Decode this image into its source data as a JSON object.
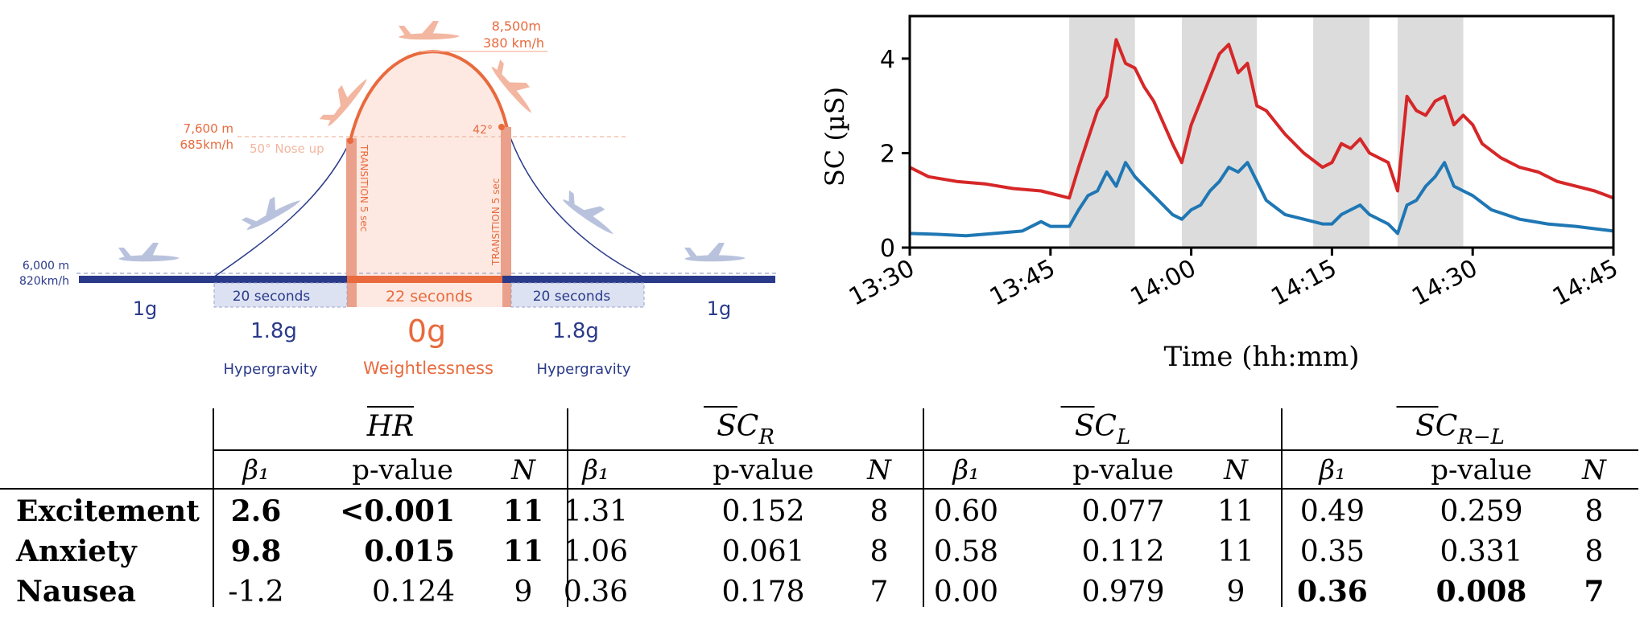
{
  "parabola": {
    "start_altitude": "6,000 m",
    "start_speed": "820km/h",
    "entry_altitude": "7,600 m",
    "entry_speed": "685km/h",
    "nose_up": "50° Nose up",
    "exit_angle": "42°",
    "top_altitude": "8,500m",
    "top_speed": "380 km/h",
    "transition_label": "TRANSITION 5 sec",
    "phases": [
      {
        "duration": "",
        "g": "1g",
        "name": ""
      },
      {
        "duration": "20 seconds",
        "g": "1.8g",
        "name": "Hypergravity"
      },
      {
        "duration": "22 seconds",
        "g": "0g",
        "name": "Weightlessness"
      },
      {
        "duration": "20 seconds",
        "g": "1.8g",
        "name": "Hypergravity"
      },
      {
        "duration": "",
        "g": "1g",
        "name": ""
      }
    ],
    "colors": {
      "orange": "#e86a3d",
      "navy": "#2a3a8a",
      "plane": "#b9c2dd",
      "plane_orange": "#f3b6a0"
    }
  },
  "chart_data": {
    "type": "line",
    "ylabel": "SC (µS)",
    "xlabel": "Time (hh:mm)",
    "xlim": [
      "13:30",
      "14:45"
    ],
    "ylim": [
      0,
      4.9
    ],
    "xticks": [
      "13:30",
      "13:45",
      "14:00",
      "14:15",
      "14:30",
      "14:45"
    ],
    "yticks": [
      0,
      2,
      4
    ],
    "shaded_intervals": [
      [
        "13:47",
        "13:54"
      ],
      [
        "13:59",
        "14:07"
      ],
      [
        "14:13",
        "14:19"
      ],
      [
        "14:22",
        "14:29"
      ]
    ],
    "series": [
      {
        "color": "#d62728",
        "points": [
          [
            "13:30",
            1.7
          ],
          [
            "13:32",
            1.5
          ],
          [
            "13:35",
            1.4
          ],
          [
            "13:38",
            1.35
          ],
          [
            "13:41",
            1.25
          ],
          [
            "13:44",
            1.2
          ],
          [
            "13:47",
            1.05
          ],
          [
            "13:48",
            1.7
          ],
          [
            "13:49",
            2.3
          ],
          [
            "13:50",
            2.9
          ],
          [
            "13:51",
            3.2
          ],
          [
            "13:52",
            4.4
          ],
          [
            "13:53",
            3.9
          ],
          [
            "13:54",
            3.8
          ],
          [
            "13:55",
            3.4
          ],
          [
            "13:56",
            3.1
          ],
          [
            "13:58",
            2.2
          ],
          [
            "13:59",
            1.8
          ],
          [
            "14:00",
            2.6
          ],
          [
            "14:01",
            3.1
          ],
          [
            "14:02",
            3.6
          ],
          [
            "14:03",
            4.1
          ],
          [
            "14:04",
            4.3
          ],
          [
            "14:05",
            3.7
          ],
          [
            "14:06",
            3.9
          ],
          [
            "14:07",
            3.0
          ],
          [
            "14:08",
            2.9
          ],
          [
            "14:10",
            2.4
          ],
          [
            "14:12",
            2.0
          ],
          [
            "14:14",
            1.7
          ],
          [
            "14:15",
            1.8
          ],
          [
            "14:16",
            2.2
          ],
          [
            "14:17",
            2.1
          ],
          [
            "14:18",
            2.3
          ],
          [
            "14:19",
            2.0
          ],
          [
            "14:21",
            1.8
          ],
          [
            "14:22",
            1.2
          ],
          [
            "14:23",
            3.2
          ],
          [
            "14:24",
            2.9
          ],
          [
            "14:25",
            2.8
          ],
          [
            "14:26",
            3.1
          ],
          [
            "14:27",
            3.2
          ],
          [
            "14:28",
            2.6
          ],
          [
            "14:29",
            2.8
          ],
          [
            "14:30",
            2.6
          ],
          [
            "14:31",
            2.2
          ],
          [
            "14:33",
            1.9
          ],
          [
            "14:35",
            1.7
          ],
          [
            "14:37",
            1.6
          ],
          [
            "14:39",
            1.4
          ],
          [
            "14:41",
            1.3
          ],
          [
            "14:43",
            1.2
          ],
          [
            "14:45",
            1.05
          ]
        ]
      },
      {
        "color": "#1f77b4",
        "points": [
          [
            "13:30",
            0.3
          ],
          [
            "13:33",
            0.28
          ],
          [
            "13:36",
            0.25
          ],
          [
            "13:39",
            0.3
          ],
          [
            "13:42",
            0.35
          ],
          [
            "13:44",
            0.55
          ],
          [
            "13:45",
            0.45
          ],
          [
            "13:47",
            0.45
          ],
          [
            "13:48",
            0.8
          ],
          [
            "13:49",
            1.1
          ],
          [
            "13:50",
            1.2
          ],
          [
            "13:51",
            1.6
          ],
          [
            "13:52",
            1.3
          ],
          [
            "13:53",
            1.8
          ],
          [
            "13:54",
            1.5
          ],
          [
            "13:55",
            1.3
          ],
          [
            "13:56",
            1.1
          ],
          [
            "13:58",
            0.7
          ],
          [
            "13:59",
            0.6
          ],
          [
            "14:00",
            0.8
          ],
          [
            "14:01",
            0.9
          ],
          [
            "14:02",
            1.2
          ],
          [
            "14:03",
            1.4
          ],
          [
            "14:04",
            1.7
          ],
          [
            "14:05",
            1.6
          ],
          [
            "14:06",
            1.8
          ],
          [
            "14:07",
            1.4
          ],
          [
            "14:08",
            1.0
          ],
          [
            "14:10",
            0.7
          ],
          [
            "14:12",
            0.6
          ],
          [
            "14:14",
            0.5
          ],
          [
            "14:15",
            0.5
          ],
          [
            "14:16",
            0.7
          ],
          [
            "14:17",
            0.8
          ],
          [
            "14:18",
            0.9
          ],
          [
            "14:19",
            0.7
          ],
          [
            "14:21",
            0.5
          ],
          [
            "14:22",
            0.3
          ],
          [
            "14:23",
            0.9
          ],
          [
            "14:24",
            1.0
          ],
          [
            "14:25",
            1.3
          ],
          [
            "14:26",
            1.5
          ],
          [
            "14:27",
            1.8
          ],
          [
            "14:28",
            1.3
          ],
          [
            "14:29",
            1.2
          ],
          [
            "14:30",
            1.1
          ],
          [
            "14:32",
            0.8
          ],
          [
            "14:35",
            0.6
          ],
          [
            "14:38",
            0.5
          ],
          [
            "14:41",
            0.45
          ],
          [
            "14:45",
            0.35
          ]
        ]
      }
    ]
  },
  "table": {
    "groups": [
      "HR",
      "SC_R",
      "SC_L",
      "SC_R−L"
    ],
    "subheaders": [
      "β₁",
      "p-value",
      "N"
    ],
    "rows": [
      {
        "label": "Excitement",
        "cells": [
          [
            "2.6",
            "<0.001",
            "11"
          ],
          [
            "1.31",
            "0.152",
            "8"
          ],
          [
            "0.60",
            "0.077",
            "11"
          ],
          [
            "0.49",
            "0.259",
            "8"
          ]
        ],
        "bold_groups": [
          0
        ]
      },
      {
        "label": "Anxiety",
        "cells": [
          [
            "9.8",
            "0.015",
            "11"
          ],
          [
            "1.06",
            "0.061",
            "8"
          ],
          [
            "0.58",
            "0.112",
            "11"
          ],
          [
            "0.35",
            "0.331",
            "8"
          ]
        ],
        "bold_groups": [
          0
        ]
      },
      {
        "label": "Nausea",
        "cells": [
          [
            "-1.2",
            "0.124",
            "9"
          ],
          [
            "0.36",
            "0.178",
            "7"
          ],
          [
            "0.00",
            "0.979",
            "9"
          ],
          [
            "0.36",
            "0.008",
            "7"
          ]
        ],
        "bold_groups": [
          3
        ]
      }
    ]
  }
}
